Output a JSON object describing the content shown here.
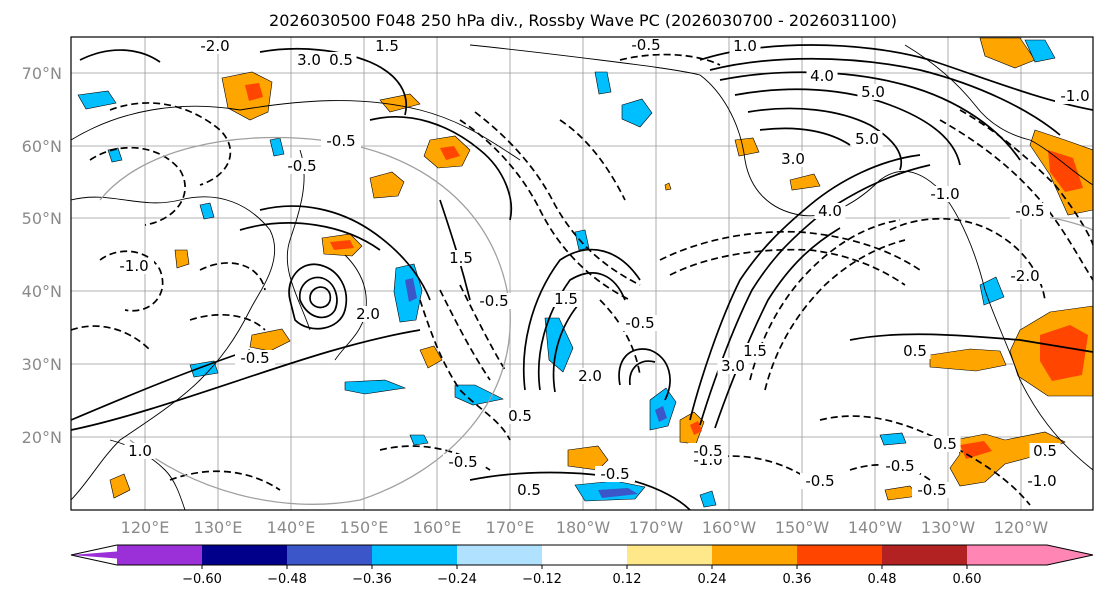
{
  "title": "2026030500 F048 250 hPa div., Rossby Wave PC (2026030700 - 2026031100)",
  "lat_labels": [
    "70°N",
    "60°N",
    "50°N",
    "40°N",
    "30°N",
    "20°N"
  ],
  "lon_labels": [
    "120°E",
    "130°E",
    "140°E",
    "150°E",
    "160°E",
    "170°E",
    "180°W",
    "170°W",
    "160°W",
    "150°W",
    "140°W",
    "130°W",
    "120°W"
  ],
  "colorbar": {
    "ticks": [
      "−0.60",
      "−0.48",
      "−0.36",
      "−0.24",
      "−0.12",
      "0.12",
      "0.24",
      "0.36",
      "0.48",
      "0.60"
    ],
    "colors": [
      "#9b30d9",
      "#00008b",
      "#3a56c8",
      "#00bfff",
      "#b0e2ff",
      "#ffffff",
      "#ffe88a",
      "#ffa500",
      "#ff4500",
      "#b22222",
      "#ff86b4"
    ]
  },
  "contour_labels": {
    "solid": [
      "3.0",
      "1.5",
      "0.5",
      "1.0",
      "4.0",
      "5.0",
      "5.0",
      "3.0",
      "1.5",
      "1.5",
      "0.5",
      "0.5",
      "3.0",
      "2.0",
      "0.5",
      "0.5",
      "1.0",
      "0.5",
      "0.5",
      "1.5",
      "2.0",
      "4.0"
    ],
    "dashed": [
      "-0.5",
      "-1.0",
      "-0.5",
      "-0.5",
      "-2.0",
      "-1.0",
      "-0.5",
      "-0.5",
      "-1.0",
      "-0.5",
      "-0.5",
      "-2.0",
      "-1.0",
      "-0.5",
      "-0.5",
      "-0.5",
      "-1.0",
      "-0.5",
      "-0.5",
      "-0.5"
    ]
  }
}
